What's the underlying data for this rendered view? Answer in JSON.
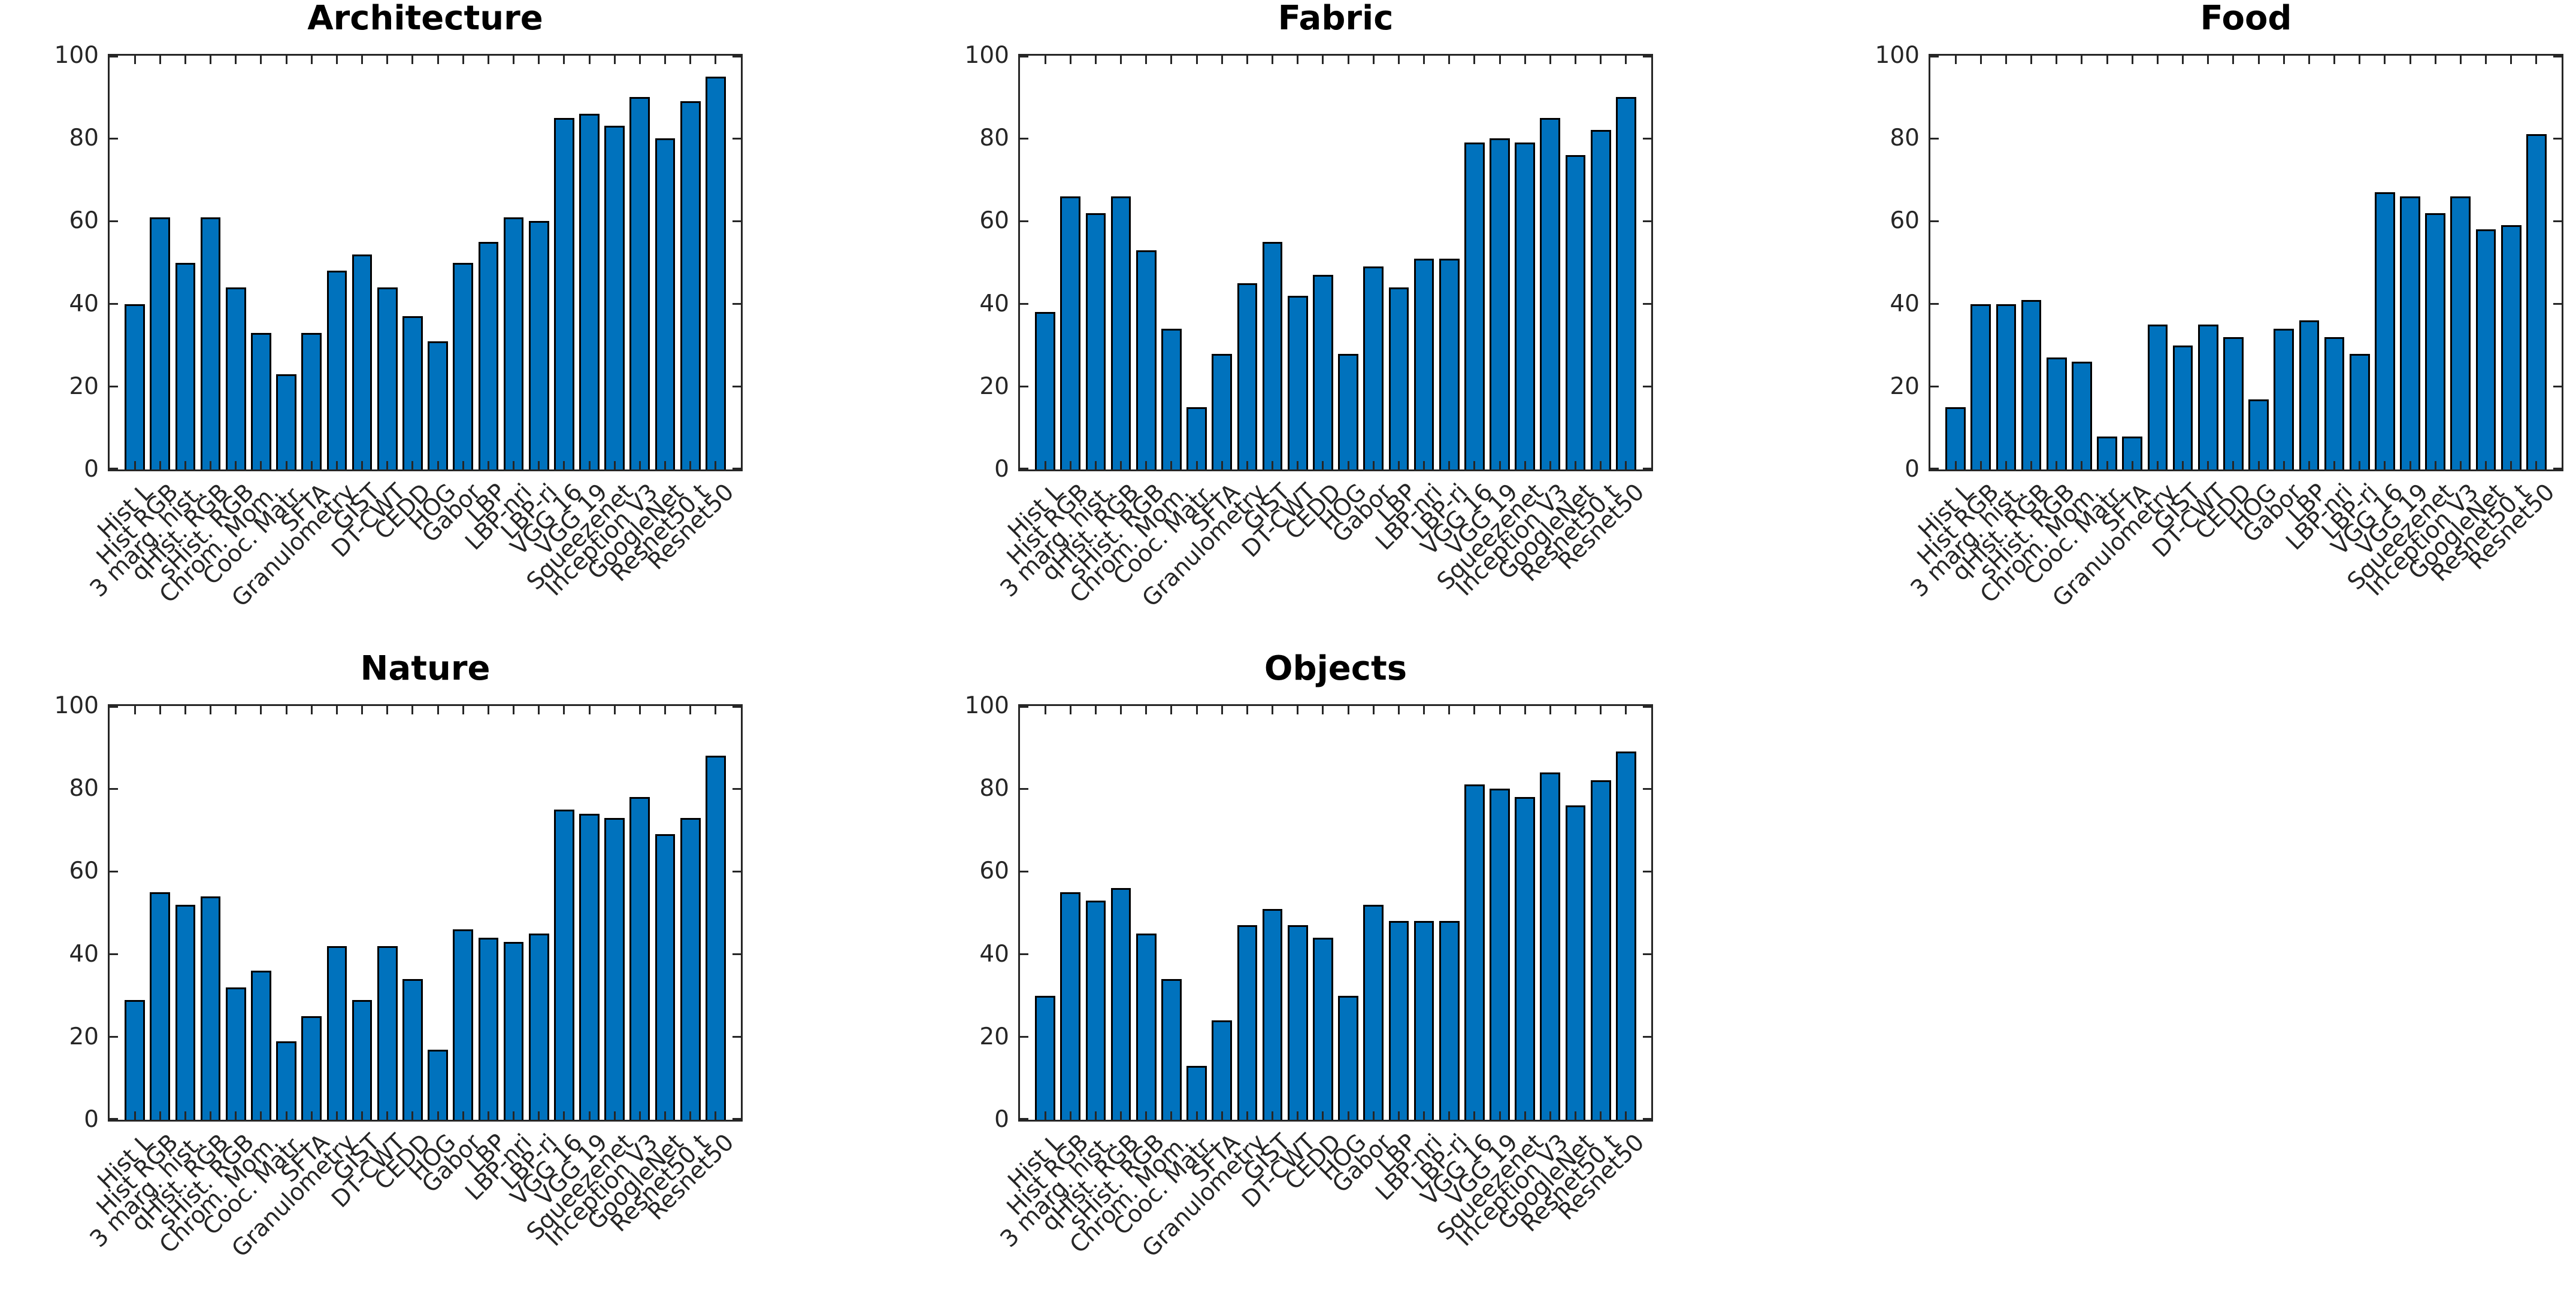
{
  "figure": {
    "background": "#ffffff",
    "bar_color": "#0072BD",
    "bar_edge_color": "#000000",
    "axis_color": "#262626",
    "title_color": "#000000"
  },
  "chart_data": [
    {
      "type": "bar",
      "title": "Architecture",
      "categories": [
        "Hist L",
        "Hist RGB",
        "3 marg. hist.",
        "qHist. RGB",
        "sHist. RGB",
        "Chrom. Mom.",
        "Cooc. Matr.",
        "SFTA",
        "Granulometry",
        "GIST",
        "DT-CWT",
        "CEDD",
        "HOG",
        "Gabor",
        "LBP",
        "LBP-nri",
        "LBP-ri",
        "VGG 16",
        "VGG 19",
        "Squeezenet",
        "Inception V3",
        "GoogleNet",
        "Resnet50 t",
        "Resnet50"
      ],
      "values": [
        40,
        61,
        50,
        61,
        44,
        33,
        23,
        33,
        48,
        52,
        44,
        37,
        31,
        50,
        55,
        61,
        60,
        85,
        86,
        83,
        90,
        80,
        89,
        95
      ],
      "xlabel": "",
      "ylabel": "",
      "ylim": [
        0,
        100
      ],
      "yticks": [
        0,
        20,
        40,
        60,
        80,
        100
      ],
      "grid": false,
      "legend": null,
      "xtick_rotation": 45
    },
    {
      "type": "bar",
      "title": "Fabric",
      "categories": [
        "Hist L",
        "Hist RGB",
        "3 marg. hist.",
        "qHist. RGB",
        "sHist. RGB",
        "Chrom. Mom.",
        "Cooc. Matr.",
        "SFTA",
        "Granulometry",
        "GIST",
        "DT-CWT",
        "CEDD",
        "HOG",
        "Gabor",
        "LBP",
        "LBP-nri",
        "LBP-ri",
        "VGG 16",
        "VGG 19",
        "Squeezenet",
        "Inception V3",
        "GoogleNet",
        "Resnet50 t",
        "Resnet50"
      ],
      "values": [
        38,
        66,
        62,
        66,
        53,
        34,
        15,
        28,
        45,
        55,
        42,
        47,
        28,
        49,
        44,
        51,
        51,
        79,
        80,
        79,
        85,
        76,
        82,
        90
      ],
      "xlabel": "",
      "ylabel": "",
      "ylim": [
        0,
        100
      ],
      "yticks": [
        0,
        20,
        40,
        60,
        80,
        100
      ],
      "grid": false,
      "legend": null,
      "xtick_rotation": 45
    },
    {
      "type": "bar",
      "title": "Food",
      "categories": [
        "Hist L",
        "Hist RGB",
        "3 marg. hist.",
        "qHist. RGB",
        "sHist. RGB",
        "Chrom. Mom.",
        "Cooc. Matr.",
        "SFTA",
        "Granulometry",
        "GIST",
        "DT-CWT",
        "CEDD",
        "HOG",
        "Gabor",
        "LBP",
        "LBP-nri",
        "LBP-ri",
        "VGG 16",
        "VGG 19",
        "Squeezenet",
        "Inception V3",
        "GoogleNet",
        "Resnet50 t",
        "Resnet50"
      ],
      "values": [
        15,
        40,
        40,
        41,
        27,
        26,
        8,
        8,
        35,
        30,
        35,
        32,
        17,
        34,
        36,
        32,
        28,
        67,
        66,
        62,
        66,
        58,
        59,
        81
      ],
      "xlabel": "",
      "ylabel": "",
      "ylim": [
        0,
        100
      ],
      "yticks": [
        0,
        20,
        40,
        60,
        80,
        100
      ],
      "grid": false,
      "legend": null,
      "xtick_rotation": 45
    },
    {
      "type": "bar",
      "title": "Nature",
      "categories": [
        "Hist L",
        "Hist RGB",
        "3 marg. hist.",
        "qHist. RGB",
        "sHist. RGB",
        "Chrom. Mom.",
        "Cooc. Matr.",
        "SFTA",
        "Granulometry",
        "GIST",
        "DT-CWT",
        "CEDD",
        "HOG",
        "Gabor",
        "LBP",
        "LBP-nri",
        "LBP-ri",
        "VGG 16",
        "VGG 19",
        "Squeezenet",
        "Inception V3",
        "GoogleNet",
        "Resnet50 t",
        "Resnet50"
      ],
      "values": [
        29,
        55,
        52,
        54,
        32,
        36,
        19,
        25,
        42,
        29,
        42,
        34,
        17,
        46,
        44,
        43,
        45,
        75,
        74,
        73,
        78,
        69,
        73,
        88
      ],
      "xlabel": "",
      "ylabel": "",
      "ylim": [
        0,
        100
      ],
      "yticks": [
        0,
        20,
        40,
        60,
        80,
        100
      ],
      "grid": false,
      "legend": null,
      "xtick_rotation": 45
    },
    {
      "type": "bar",
      "title": "Objects",
      "categories": [
        "Hist L",
        "Hist RGB",
        "3 marg. hist.",
        "qHist. RGB",
        "sHist. RGB",
        "Chrom. Mom.",
        "Cooc. Matr.",
        "SFTA",
        "Granulometry",
        "GIST",
        "DT-CWT",
        "CEDD",
        "HOG",
        "Gabor",
        "LBP",
        "LBP-nri",
        "LBP-ri",
        "VGG 16",
        "VGG 19",
        "Squeezenet",
        "Inception V3",
        "GoogleNet",
        "Resnet50 t",
        "Resnet50"
      ],
      "values": [
        30,
        55,
        53,
        56,
        45,
        34,
        13,
        24,
        47,
        51,
        47,
        44,
        30,
        52,
        48,
        48,
        48,
        81,
        80,
        78,
        84,
        76,
        82,
        89
      ],
      "xlabel": "",
      "ylabel": "",
      "ylim": [
        0,
        100
      ],
      "yticks": [
        0,
        20,
        40,
        60,
        80,
        100
      ],
      "grid": false,
      "legend": null,
      "xtick_rotation": 45
    }
  ]
}
